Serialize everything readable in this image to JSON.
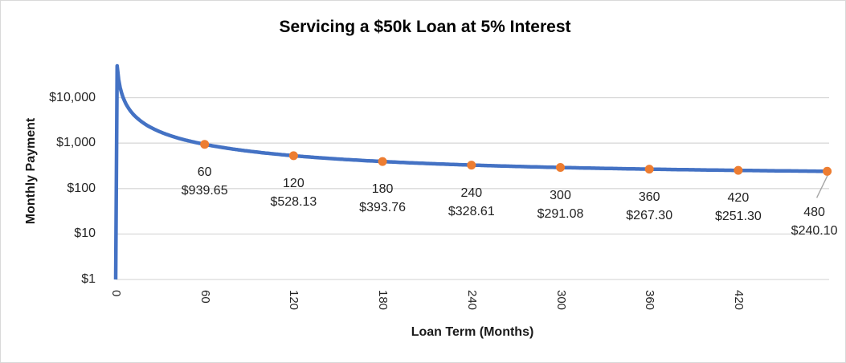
{
  "chart_data": {
    "type": "line",
    "title": "Servicing a $50k Loan at 5% Interest",
    "xlabel": "Loan Term (Months)",
    "ylabel": "Monthly Payment",
    "y_scale": "log",
    "ylim": [
      1,
      64000
    ],
    "xlim": [
      0,
      484
    ],
    "x_range_months": [
      0,
      480
    ],
    "grid": "horizontal-only",
    "legend": "none",
    "loan_principal": 50000,
    "annual_interest_rate_pct": 5,
    "x_ticks": {
      "values": [
        0,
        60,
        120,
        180,
        240,
        300,
        360,
        420
      ],
      "labels": [
        "0",
        "60",
        "120",
        "180",
        "240",
        "300",
        "360",
        "420"
      ],
      "rotation_deg": 90
    },
    "y_ticks": {
      "values": [
        1,
        10,
        100,
        1000,
        10000
      ],
      "labels": [
        "$1",
        "$10",
        "$100",
        "$1,000",
        "$10,000"
      ]
    },
    "labeled_points": [
      {
        "term_months": 60,
        "monthly_payment": 939.65,
        "label_line1": "60",
        "label_line2": "$939.65"
      },
      {
        "term_months": 120,
        "monthly_payment": 528.13,
        "label_line1": "120",
        "label_line2": "$528.13"
      },
      {
        "term_months": 180,
        "monthly_payment": 393.76,
        "label_line1": "180",
        "label_line2": "$393.76"
      },
      {
        "term_months": 240,
        "monthly_payment": 328.61,
        "label_line1": "240",
        "label_line2": "$328.61"
      },
      {
        "term_months": 300,
        "monthly_payment": 291.08,
        "label_line1": "300",
        "label_line2": "$291.08"
      },
      {
        "term_months": 360,
        "monthly_payment": 267.3,
        "label_line1": "360",
        "label_line2": "$267.30"
      },
      {
        "term_months": 420,
        "monthly_payment": 251.3,
        "label_line1": "420",
        "label_line2": "$251.30"
      },
      {
        "term_months": 480,
        "monthly_payment": 240.1,
        "label_line1": "480",
        "label_line2": "$240.10",
        "label_dx": -16,
        "label_dy": 40,
        "leader_line": true
      }
    ],
    "colors": {
      "line": "#4472C4",
      "marker": "#ED7D31",
      "gridline": "#D9D9D9",
      "leader": "#A6A6A6",
      "text": "#262626",
      "border": "#D9D9D9"
    }
  }
}
